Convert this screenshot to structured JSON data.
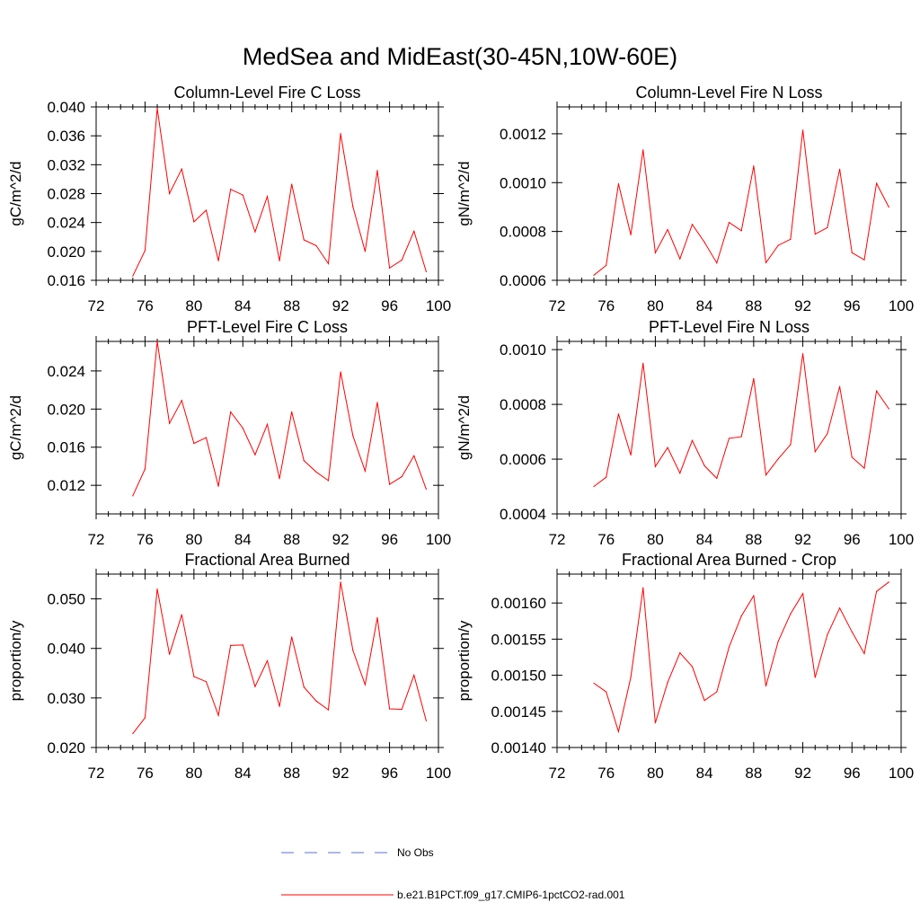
{
  "title": "MedSea and MidEast(30-45N,10W-60E)",
  "legend": {
    "obs_label": "No Obs",
    "obs_color": "#5b6fd6",
    "model_label": "b.e21.B1PCT.f09_g17.CMIP6-1pctCO2-rad.001",
    "model_color": "#ff0000"
  },
  "chart_data": [
    {
      "type": "line",
      "title": "Column-Level Fire C Loss",
      "xlabel": "",
      "ylabel": "gC/m^2/d",
      "xlim": [
        72,
        100
      ],
      "ylim": [
        0.016,
        0.04
      ],
      "x_ticks": [
        72,
        76,
        80,
        84,
        88,
        92,
        96,
        100
      ],
      "y_ticks": [
        0.016,
        0.02,
        0.024,
        0.028,
        0.032,
        0.036,
        0.04
      ],
      "y_tick_labels": [
        "0.016",
        "0.020",
        "0.024",
        "0.028",
        "0.032",
        "0.036",
        "0.040"
      ],
      "x": [
        75,
        76,
        77,
        78,
        79,
        80,
        81,
        82,
        83,
        84,
        85,
        86,
        87,
        88,
        89,
        90,
        91,
        92,
        93,
        94,
        95,
        96,
        97,
        98,
        99
      ],
      "values": [
        0.0166,
        0.0201,
        0.0398,
        0.028,
        0.0314,
        0.0241,
        0.0257,
        0.0187,
        0.0286,
        0.0278,
        0.0227,
        0.0276,
        0.0187,
        0.0293,
        0.0216,
        0.0208,
        0.0183,
        0.0363,
        0.0262,
        0.02,
        0.0312,
        0.0177,
        0.0188,
        0.0228,
        0.0172
      ]
    },
    {
      "type": "line",
      "title": "Column-Level Fire N Loss",
      "xlabel": "",
      "ylabel": "gN/m^2/d",
      "xlim": [
        72,
        100
      ],
      "ylim": [
        0.0006,
        0.00131
      ],
      "x_ticks": [
        72,
        76,
        80,
        84,
        88,
        92,
        96,
        100
      ],
      "y_ticks": [
        0.0006,
        0.0008,
        0.001,
        0.0012
      ],
      "y_tick_labels": [
        "0.0006",
        "0.0008",
        "0.0010",
        "0.0012"
      ],
      "x": [
        75,
        76,
        77,
        78,
        79,
        80,
        81,
        82,
        83,
        84,
        85,
        86,
        87,
        88,
        89,
        90,
        91,
        92,
        93,
        94,
        95,
        96,
        97,
        98,
        99
      ],
      "values": [
        0.000621,
        0.000661,
        0.000995,
        0.000786,
        0.001134,
        0.000713,
        0.000808,
        0.000688,
        0.000829,
        0.000756,
        0.000671,
        0.000837,
        0.000803,
        0.001068,
        0.000672,
        0.000743,
        0.000768,
        0.001215,
        0.000789,
        0.000816,
        0.001055,
        0.000713,
        0.000684,
        0.000997,
        0.0009
      ]
    },
    {
      "type": "line",
      "title": "PFT-Level Fire C Loss",
      "xlabel": "",
      "ylabel": "gC/m^2/d",
      "xlim": [
        72,
        100
      ],
      "ylim": [
        0.009,
        0.0271
      ],
      "x_ticks": [
        72,
        76,
        80,
        84,
        88,
        92,
        96,
        100
      ],
      "y_ticks": [
        0.012,
        0.016,
        0.02,
        0.024
      ],
      "y_tick_labels": [
        "0.012",
        "0.016",
        "0.020",
        "0.024"
      ],
      "x": [
        75,
        76,
        77,
        78,
        79,
        80,
        81,
        82,
        83,
        84,
        85,
        86,
        87,
        88,
        89,
        90,
        91,
        92,
        93,
        94,
        95,
        96,
        97,
        98,
        99
      ],
      "values": [
        0.0109,
        0.0137,
        0.0271,
        0.0185,
        0.0209,
        0.0164,
        0.017,
        0.0119,
        0.0197,
        0.018,
        0.0152,
        0.0184,
        0.0127,
        0.0197,
        0.0146,
        0.0134,
        0.0125,
        0.0239,
        0.0172,
        0.0135,
        0.0207,
        0.0121,
        0.0129,
        0.0151,
        0.0116
      ]
    },
    {
      "type": "line",
      "title": "PFT-Level Fire N Loss",
      "xlabel": "",
      "ylabel": "gN/m^2/d",
      "xlim": [
        72,
        100
      ],
      "ylim": [
        0.0004,
        0.00103
      ],
      "x_ticks": [
        72,
        76,
        80,
        84,
        88,
        92,
        96,
        100
      ],
      "y_ticks": [
        0.0004,
        0.0006,
        0.0008,
        0.001
      ],
      "y_tick_labels": [
        "0.0004",
        "0.0006",
        "0.0008",
        "0.0010"
      ],
      "x": [
        75,
        76,
        77,
        78,
        79,
        80,
        81,
        82,
        83,
        84,
        85,
        86,
        87,
        88,
        89,
        90,
        91,
        92,
        93,
        94,
        95,
        96,
        97,
        98,
        99
      ],
      "values": [
        0.0005,
        0.000534,
        0.000765,
        0.000615,
        0.00095,
        0.000573,
        0.000642,
        0.000549,
        0.000668,
        0.000576,
        0.00053,
        0.000676,
        0.000682,
        0.000894,
        0.000542,
        0.000601,
        0.000653,
        0.000985,
        0.000627,
        0.000693,
        0.000865,
        0.000607,
        0.000567,
        0.000849,
        0.000784
      ]
    },
    {
      "type": "line",
      "title": "Fractional Area Burned",
      "xlabel": "",
      "ylabel": "proportion/y",
      "xlim": [
        72,
        100
      ],
      "ylim": [
        0.02,
        0.055
      ],
      "x_ticks": [
        72,
        76,
        80,
        84,
        88,
        92,
        96,
        100
      ],
      "y_ticks": [
        0.02,
        0.03,
        0.04,
        0.05
      ],
      "y_tick_labels": [
        "0.020",
        "0.030",
        "0.040",
        "0.050"
      ],
      "x": [
        75,
        76,
        77,
        78,
        79,
        80,
        81,
        82,
        83,
        84,
        85,
        86,
        87,
        88,
        89,
        90,
        91,
        92,
        93,
        94,
        95,
        96,
        97,
        98,
        99
      ],
      "values": [
        0.0228,
        0.026,
        0.052,
        0.0388,
        0.0468,
        0.0343,
        0.0333,
        0.0265,
        0.0406,
        0.0407,
        0.0323,
        0.0375,
        0.0283,
        0.0423,
        0.0322,
        0.0294,
        0.0276,
        0.0534,
        0.0396,
        0.0327,
        0.0462,
        0.0278,
        0.0277,
        0.0346,
        0.0254
      ]
    },
    {
      "type": "line",
      "title": "Fractional Area Burned - Crop",
      "xlabel": "",
      "ylabel": "proportion/y",
      "xlim": [
        72,
        100
      ],
      "ylim": [
        0.0014,
        0.00164
      ],
      "x_ticks": [
        72,
        76,
        80,
        84,
        88,
        92,
        96,
        100
      ],
      "y_ticks": [
        0.0014,
        0.00145,
        0.0015,
        0.00155,
        0.0016
      ],
      "y_tick_labels": [
        "0.00140",
        "0.00145",
        "0.00150",
        "0.00155",
        "0.00160"
      ],
      "x": [
        75,
        76,
        77,
        78,
        79,
        80,
        81,
        82,
        83,
        84,
        85,
        86,
        87,
        88,
        89,
        90,
        91,
        92,
        93,
        94,
        95,
        96,
        97,
        98,
        99
      ],
      "values": [
        0.001489,
        0.001477,
        0.001422,
        0.001497,
        0.001621,
        0.001434,
        0.00149,
        0.001531,
        0.001512,
        0.001465,
        0.001477,
        0.001539,
        0.001582,
        0.00161,
        0.001485,
        0.001547,
        0.001585,
        0.001613,
        0.001497,
        0.001556,
        0.001593,
        0.00156,
        0.00153,
        0.001616,
        0.001629
      ]
    }
  ]
}
